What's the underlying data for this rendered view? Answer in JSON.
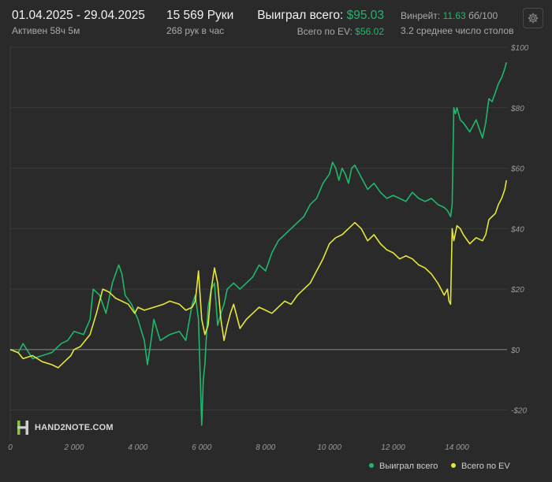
{
  "header": {
    "date_range": "01.04.2025 - 29.04.2025",
    "active_time": "Активен 58ч 5м",
    "hands": "15 569 Руки",
    "hands_per_hour": "268 рук в час",
    "won_label": "Выиграл всего:",
    "won_value": "$95.03",
    "ev_label": "Всего по EV:",
    "ev_value": "$56.02",
    "winrate_label": "Винрейт:",
    "winrate_value": "11.63",
    "winrate_unit": "бб/100",
    "tables": "3.2 среднее число столов"
  },
  "icons": {
    "settings": "gear-icon",
    "watermark": "hand2note-logo"
  },
  "watermark": "HAND2NOTE.COM",
  "legend": [
    {
      "label": "Выиграл всего",
      "color": "#1fb86a"
    },
    {
      "label": "Всего по EV",
      "color": "#e6e63a"
    }
  ],
  "colors": {
    "background": "#2a2a2a",
    "won": "#1fb86a",
    "ev": "#e6e63a",
    "grid": "#3a3a3a",
    "zero": "#8a8a8a"
  },
  "chart_data": {
    "type": "line",
    "xlim": [
      0,
      15569
    ],
    "ylim": [
      -30,
      100
    ],
    "x_ticks": [
      0,
      2000,
      4000,
      6000,
      8000,
      10000,
      12000,
      14000
    ],
    "x_tick_labels": [
      "0",
      "2 000",
      "4 000",
      "6 000",
      "8 000",
      "10 000",
      "12 000",
      "14 000"
    ],
    "y_ticks": [
      -20,
      0,
      20,
      40,
      60,
      80,
      100
    ],
    "y_tick_labels": [
      "-$20",
      "$0",
      "$20",
      "$40",
      "$60",
      "$80",
      "$100"
    ],
    "grid": true,
    "legend_position": "bottom-right",
    "series": [
      {
        "name": "Выиграл всего",
        "x": [
          0,
          250,
          400,
          700,
          1000,
          1300,
          1600,
          1800,
          2000,
          2300,
          2500,
          2600,
          2800,
          3000,
          3200,
          3400,
          3500,
          3600,
          3800,
          4000,
          4200,
          4300,
          4400,
          4500,
          4700,
          5000,
          5300,
          5500,
          5700,
          5800,
          5900,
          6000,
          6050,
          6100,
          6150,
          6200,
          6300,
          6400,
          6500,
          6600,
          6700,
          6800,
          7000,
          7200,
          7400,
          7600,
          7800,
          8000,
          8200,
          8400,
          8600,
          8800,
          9000,
          9200,
          9400,
          9600,
          9800,
          10000,
          10100,
          10200,
          10300,
          10400,
          10500,
          10600,
          10700,
          10800,
          11000,
          11200,
          11400,
          11600,
          11800,
          12000,
          12200,
          12400,
          12600,
          12800,
          13000,
          13200,
          13400,
          13600,
          13700,
          13800,
          13850,
          13900,
          13950,
          14000,
          14100,
          14200,
          14400,
          14600,
          14800,
          14900,
          15000,
          15100,
          15200,
          15300,
          15400,
          15500,
          15550
        ],
        "values": [
          0,
          -1,
          2,
          -3,
          -2,
          -1,
          2,
          3,
          6,
          5,
          10,
          20,
          18,
          12,
          22,
          28,
          25,
          18,
          15,
          10,
          3,
          -5,
          2,
          10,
          3,
          5,
          6,
          3,
          15,
          18,
          10,
          -25,
          -10,
          -5,
          5,
          14,
          20,
          22,
          8,
          12,
          15,
          20,
          22,
          20,
          22,
          24,
          28,
          26,
          32,
          36,
          38,
          40,
          42,
          44,
          48,
          50,
          55,
          58,
          62,
          60,
          56,
          60,
          58,
          55,
          60,
          61,
          57,
          53,
          55,
          52,
          50,
          51,
          50,
          49,
          52,
          50,
          49,
          50,
          48,
          47,
          46,
          44,
          48,
          80,
          78,
          80,
          76,
          75,
          72,
          76,
          70,
          75,
          83,
          82,
          85,
          88,
          90,
          93,
          95
        ]
      },
      {
        "name": "Всего по EV",
        "x": [
          0,
          250,
          400,
          700,
          1000,
          1300,
          1500,
          1700,
          1900,
          2000,
          2200,
          2500,
          2700,
          2900,
          3100,
          3300,
          3500,
          3700,
          3900,
          4000,
          4200,
          4500,
          4800,
          5000,
          5300,
          5500,
          5700,
          5800,
          5900,
          6000,
          6100,
          6200,
          6300,
          6400,
          6500,
          6600,
          6700,
          6800,
          6900,
          7000,
          7200,
          7400,
          7600,
          7800,
          8000,
          8200,
          8400,
          8600,
          8800,
          9000,
          9200,
          9400,
          9600,
          9800,
          10000,
          10200,
          10400,
          10600,
          10800,
          11000,
          11200,
          11400,
          11600,
          11800,
          12000,
          12200,
          12400,
          12600,
          12800,
          13000,
          13200,
          13400,
          13600,
          13700,
          13750,
          13800,
          13850,
          13900,
          14000,
          14100,
          14200,
          14400,
          14600,
          14800,
          14900,
          15000,
          15100,
          15200,
          15300,
          15400,
          15500,
          15550
        ],
        "values": [
          0,
          -1,
          -3,
          -2,
          -4,
          -5,
          -6,
          -4,
          -2,
          0,
          1,
          5,
          12,
          20,
          19,
          17,
          16,
          15,
          12,
          14,
          13,
          14,
          15,
          16,
          15,
          13,
          14,
          16,
          26,
          10,
          5,
          8,
          20,
          27,
          22,
          10,
          3,
          8,
          12,
          15,
          7,
          10,
          12,
          14,
          13,
          12,
          14,
          16,
          15,
          18,
          20,
          22,
          26,
          30,
          35,
          37,
          38,
          40,
          42,
          40,
          36,
          38,
          35,
          33,
          32,
          30,
          31,
          30,
          28,
          27,
          25,
          22,
          18,
          20,
          16,
          15,
          40,
          36,
          41,
          40,
          38,
          35,
          37,
          36,
          38,
          43,
          44,
          45,
          48,
          50,
          53,
          56
        ]
      }
    ]
  }
}
